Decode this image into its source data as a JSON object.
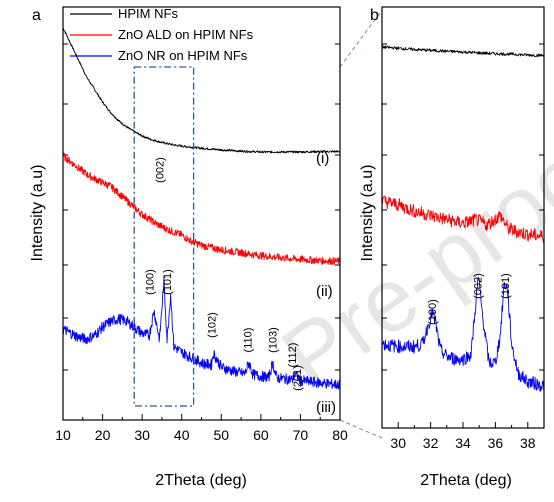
{
  "chart_data": [
    {
      "panel": "a",
      "type": "line",
      "xlabel": "2Theta (deg)",
      "ylabel": "Intensity (a.u)",
      "xlim": [
        10,
        80
      ],
      "xticks": [
        "10",
        "20",
        "30",
        "40",
        "50",
        "60",
        "70",
        "80"
      ],
      "ylim": [
        0,
        100
      ],
      "y_tick_labels_shown": false,
      "legend": {
        "placement": "top-left"
      },
      "series": [
        {
          "name": "HPIM NFs",
          "color": "#000000",
          "curve_label": "(i)",
          "x": [
            10,
            12,
            14,
            16,
            18,
            20,
            22,
            24,
            26,
            28,
            30,
            32,
            35,
            38,
            41,
            45,
            50,
            55,
            60,
            65,
            70,
            75,
            80
          ],
          "y": [
            95,
            91,
            87,
            83,
            80,
            77,
            74.5,
            72.5,
            71,
            69.8,
            68.8,
            68,
            67.2,
            66.6,
            66.2,
            65.8,
            65.4,
            65.1,
            64.9,
            64.9,
            64.9,
            65,
            65
          ]
        },
        {
          "name": "ZnO ALD on HPIM NFs",
          "color": "#ff0000",
          "curve_label": "(ii)",
          "x": [
            10,
            12,
            14,
            16,
            18,
            20,
            22,
            24,
            26,
            28,
            30,
            32,
            34,
            36,
            38,
            40,
            42,
            45,
            50,
            55,
            60,
            65,
            70,
            75,
            80
          ],
          "y": [
            64,
            62.5,
            61,
            59.5,
            58.4,
            57.5,
            56.6,
            55,
            53.2,
            51.5,
            49.8,
            48.5,
            47.3,
            46.3,
            45.5,
            44.8,
            43.5,
            42.3,
            41.2,
            40.5,
            39.8,
            39.3,
            38.9,
            38.6,
            38.4
          ]
        },
        {
          "name": "ZnO NR on HPIM NFs",
          "color": "#0000ff",
          "curve_label": "(iii)",
          "x": [
            10,
            12,
            14,
            16,
            18,
            20,
            22,
            24,
            26,
            28,
            30,
            31.8,
            33,
            34.4,
            35.5,
            36.3,
            37.2,
            38,
            40,
            42,
            44,
            46,
            47.5,
            48,
            50,
            52,
            54,
            56,
            57,
            58,
            60,
            62,
            63,
            64,
            66,
            68,
            68.6,
            70,
            72,
            74,
            76,
            78,
            80
          ],
          "y": [
            22,
            21,
            20,
            19.6,
            20.5,
            22.5,
            23.8,
            24.5,
            24,
            22.5,
            21,
            20.5,
            26.5,
            19.5,
            33.5,
            19.5,
            30.5,
            17.8,
            16.4,
            15.3,
            14.3,
            13.5,
            13.4,
            16.2,
            12.8,
            12.1,
            11.6,
            11.2,
            14,
            11,
            10.6,
            10.3,
            13.8,
            10.2,
            10,
            9.8,
            11.2,
            9.6,
            9.3,
            9.1,
            8.9,
            8.7,
            8.5
          ]
        }
      ],
      "annotations": [
        {
          "text": "(002)",
          "x": 34.4
        },
        {
          "text": "(100)",
          "x": 31.8
        },
        {
          "text": "(101)",
          "x": 36.3
        },
        {
          "text": "(102)",
          "x": 47.5
        },
        {
          "text": "(110)",
          "x": 56.6
        },
        {
          "text": "(103)",
          "x": 62.9
        },
        {
          "text": "(112)",
          "x": 67.9
        },
        {
          "text": "(201)",
          "x": 69.1
        }
      ],
      "zoom_region": {
        "x": [
          28,
          43
        ]
      }
    },
    {
      "panel": "b",
      "type": "line",
      "xlabel": "2Theta (deg)",
      "ylabel": "Intensity (a.u)",
      "xlim": [
        29,
        39
      ],
      "xticks": [
        "30",
        "32",
        "34",
        "36",
        "38"
      ],
      "ylim": [
        0,
        100
      ],
      "y_tick_labels_shown": false,
      "series": [
        {
          "name": "HPIM NFs",
          "color": "#000000",
          "x": [
            29,
            30,
            31,
            32,
            33,
            34,
            35,
            36,
            37,
            38,
            39
          ],
          "y": [
            90.5,
            90.2,
            89.9,
            89.7,
            89.5,
            89.3,
            89.1,
            88.9,
            88.8,
            88.6,
            88.5
          ]
        },
        {
          "name": "ZnO ALD on HPIM NFs",
          "color": "#ff0000",
          "x": [
            29,
            30,
            31,
            32,
            33,
            34,
            34.8,
            35.5,
            36.3,
            36.8,
            37.5,
            38,
            39
          ],
          "y": [
            54,
            53,
            51.5,
            50.5,
            49.5,
            48.6,
            49.5,
            48.2,
            50.5,
            47.3,
            46.5,
            46,
            45.5
          ]
        },
        {
          "name": "ZnO NR on HPIM NFs",
          "color": "#0000ff",
          "x": [
            29,
            29.5,
            30,
            30.5,
            31,
            31.5,
            31.9,
            32.1,
            32.3,
            32.6,
            33,
            33.5,
            34,
            34.5,
            34.75,
            34.95,
            35.2,
            35.6,
            36,
            36.3,
            36.55,
            36.75,
            37,
            37.4,
            38,
            38.5,
            39
          ],
          "y": [
            20,
            19.6,
            19.4,
            19.3,
            19.3,
            20,
            25,
            27.5,
            25,
            18.5,
            17,
            16.4,
            16.3,
            17.5,
            28,
            36,
            27,
            15.5,
            15.5,
            22,
            34.5,
            33,
            20,
            13,
            11,
            10.5,
            10
          ]
        }
      ],
      "annotations": [
        {
          "text": "(100)",
          "x": 32.1
        },
        {
          "text": "(002)",
          "x": 34.9
        },
        {
          "text": "(101)",
          "x": 36.6
        }
      ]
    }
  ],
  "watermark": "Pre-proof"
}
